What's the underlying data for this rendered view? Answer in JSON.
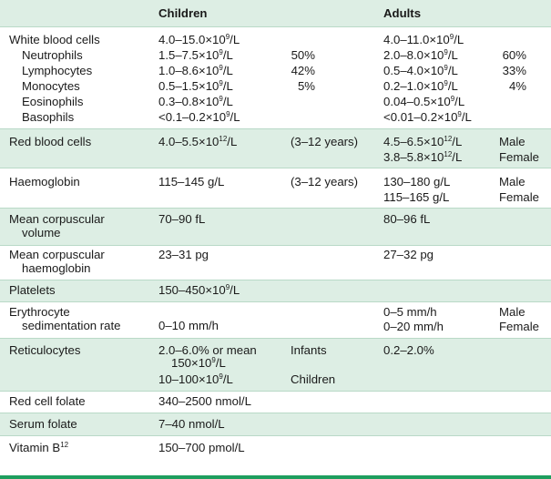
{
  "header": {
    "col_children": "Children",
    "col_adults": "Adults"
  },
  "wbc": {
    "label": "White blood cells",
    "children": "4.0–15.0×10",
    "children_exp": "9",
    "children_unit": "/L",
    "adults": "4.0–11.0×10",
    "adults_exp": "9",
    "adults_unit": "/L",
    "subs": [
      {
        "label": "Neutrophils",
        "c": "1.5–7.5×10",
        "c_exp": "9",
        "c_unit": "/L",
        "c_pct": "50%",
        "a": "2.0–8.0×10",
        "a_exp": "9",
        "a_unit": "/L",
        "a_pct": "60%"
      },
      {
        "label": "Lymphocytes",
        "c": "1.0–8.6×10",
        "c_exp": "9",
        "c_unit": "/L",
        "c_pct": "42%",
        "a": "0.5–4.0×10",
        "a_exp": "9",
        "a_unit": "/L",
        "a_pct": "33%"
      },
      {
        "label": "Monocytes",
        "c": "0.5–1.5×10",
        "c_exp": "9",
        "c_unit": "/L",
        "c_pct": "5%",
        "a": "0.2–1.0×10",
        "a_exp": "9",
        "a_unit": "/L",
        "a_pct": "4%"
      },
      {
        "label": "Eosinophils",
        "c": "0.3–0.8×10",
        "c_exp": "9",
        "c_unit": "/L",
        "c_pct": "",
        "a": "0.04–0.5×10",
        "a_exp": "9",
        "a_unit": "/L",
        "a_pct": ""
      },
      {
        "label": "Basophils",
        "c": "<0.1–0.2×10",
        "c_exp": "9",
        "c_unit": "/L",
        "c_pct": "",
        "a": "<0.01–0.2×10",
        "a_exp": "9",
        "a_unit": "/L",
        "a_pct": ""
      }
    ]
  },
  "rbc": {
    "label": "Red blood cells",
    "children": "4.0–5.5×10",
    "children_exp": "12",
    "children_unit": "/L",
    "children_note": "(3–12 years)",
    "adults_male": "4.5–6.5×10",
    "adults_male_exp": "12",
    "adults_male_unit": "/L",
    "male": "Male",
    "adults_female": "3.8–5.8×10",
    "adults_female_exp": "12",
    "adults_female_unit": "/L",
    "female": "Female"
  },
  "hb": {
    "label": "Haemoglobin",
    "children": "115–145 g/L",
    "children_note": "(3–12 years)",
    "adults_male": "130–180 g/L",
    "male": "Male",
    "adults_female": "115–165 g/L",
    "female": "Female"
  },
  "mcv": {
    "label1": "Mean corpuscular",
    "label2": "volume",
    "children": "70–90 fL",
    "adults": "80–96 fL"
  },
  "mch": {
    "label1": "Mean corpuscular",
    "label2": "haemoglobin",
    "children": "23–31 pg",
    "adults": "27–32 pg"
  },
  "plt": {
    "label": "Platelets",
    "children": "150–450×10",
    "children_exp": "9",
    "children_unit": "/L"
  },
  "esr": {
    "label1": "Erythrocyte",
    "label2": "sedimentation rate",
    "children": "0–10 mm/h",
    "adults_male": "0–5 mm/h",
    "male": "Male",
    "adults_female": "0–20 mm/h",
    "female": "Female"
  },
  "retic": {
    "label": "Reticulocytes",
    "children1": "2.0–6.0% or mean",
    "children2": "150×10",
    "children2_exp": "9",
    "children2_unit": "/L",
    "infants": "Infants",
    "children3": "10–100×10",
    "children3_exp": "9",
    "children3_unit": "/L",
    "children_note": "Children",
    "adults": "0.2–2.0%"
  },
  "folate_rc": {
    "label": "Red cell folate",
    "children": "340–2500 nmol/L"
  },
  "folate_s": {
    "label": "Serum folate",
    "children": "7–40 nmol/L"
  },
  "b12": {
    "label": "Vitamin B",
    "label_sup": "12",
    "children": "150–700 pmol/L"
  }
}
